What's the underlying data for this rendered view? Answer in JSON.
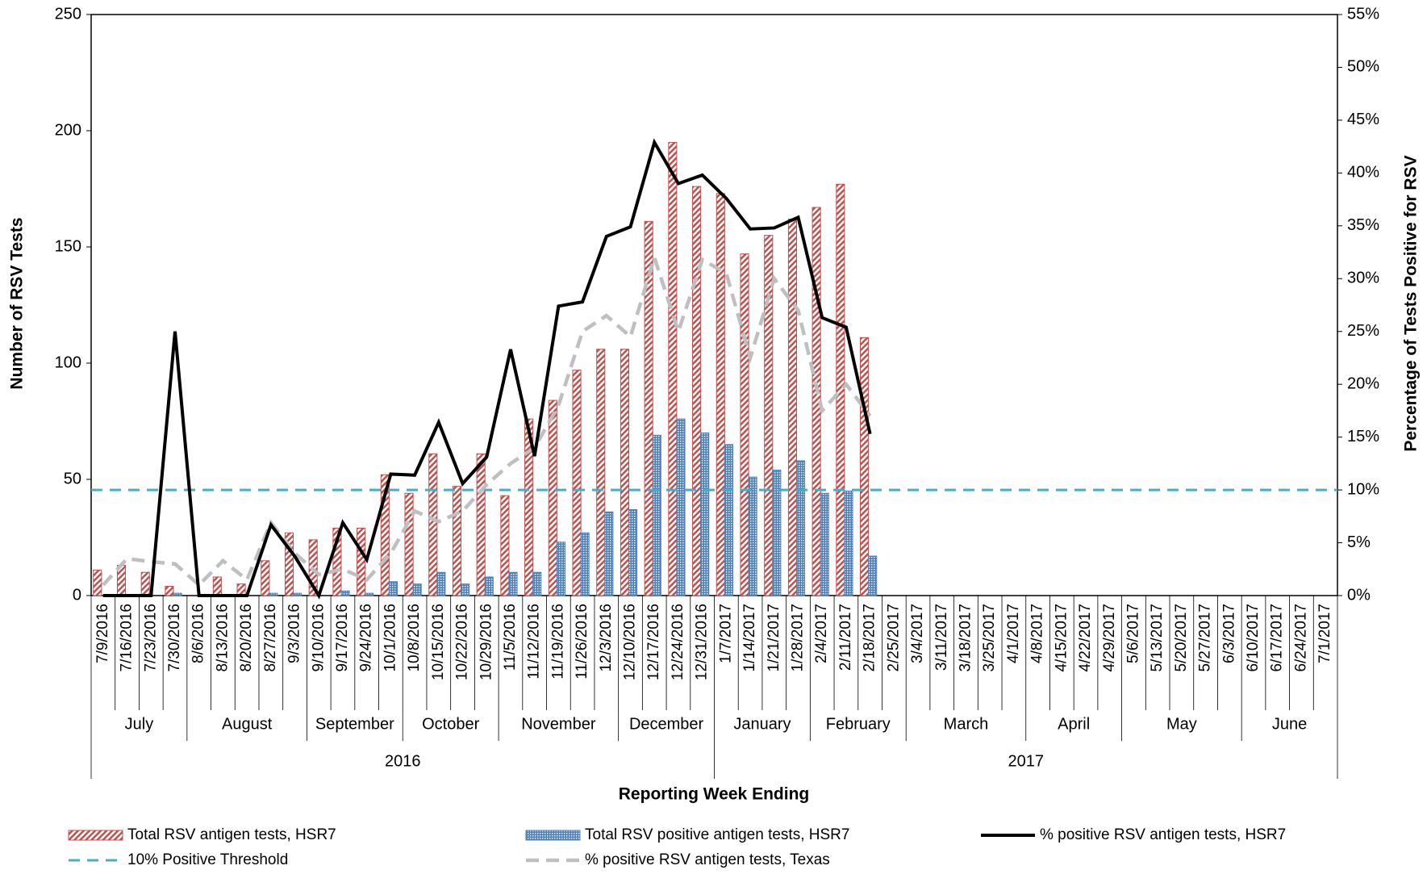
{
  "chart_data": {
    "type": "bar-line",
    "x_title": "Reporting Week Ending",
    "y_title": "Number of RSV Tests",
    "y2_title": "Percentage of Tests Positive for RSV",
    "categories": [
      "7/9/2016",
      "7/16/2016",
      "7/23/2016",
      "7/30/2016",
      "8/6/2016",
      "8/13/2016",
      "8/20/2016",
      "8/27/2016",
      "9/3/2016",
      "9/10/2016",
      "9/17/2016",
      "9/24/2016",
      "10/1/2016",
      "10/8/2016",
      "10/15/2016",
      "10/22/2016",
      "10/29/2016",
      "11/5/2016",
      "11/12/2016",
      "11/19/2016",
      "11/26/2016",
      "12/3/2016",
      "12/10/2016",
      "12/17/2016",
      "12/24/2016",
      "12/31/2016",
      "1/7/2017",
      "1/14/2017",
      "1/21/2017",
      "1/28/2017",
      "2/4/2017",
      "2/11/2017",
      "2/18/2017",
      "2/25/2017",
      "3/4/2017",
      "3/11/2017",
      "3/18/2017",
      "3/25/2017",
      "4/1/2017",
      "4/8/2017",
      "4/15/2017",
      "4/22/2017",
      "4/29/2017",
      "5/6/2017",
      "5/13/2017",
      "5/20/2017",
      "5/27/2017",
      "6/3/2017",
      "6/10/2017",
      "6/17/2017",
      "6/24/2017",
      "7/1/2017"
    ],
    "months": [
      {
        "label": "July",
        "span": 4
      },
      {
        "label": "August",
        "span": 5
      },
      {
        "label": "September",
        "span": 4
      },
      {
        "label": "October",
        "span": 4
      },
      {
        "label": "November",
        "span": 5
      },
      {
        "label": "December",
        "span": 4
      },
      {
        "label": "January",
        "span": 4
      },
      {
        "label": "February",
        "span": 4
      },
      {
        "label": "March",
        "span": 5
      },
      {
        "label": "April",
        "span": 4
      },
      {
        "label": "May",
        "span": 5
      },
      {
        "label": "June",
        "span": 4
      }
    ],
    "years": [
      {
        "label": "2016",
        "span": 26
      },
      {
        "label": "2017",
        "span": 26
      }
    ],
    "series": [
      {
        "name": "Total RSV antigen tests, HSR7",
        "kind": "bar",
        "color": "#c0504d",
        "values": [
          11,
          13,
          10,
          4,
          0,
          8,
          5,
          15,
          27,
          24,
          29,
          29,
          52,
          44,
          61,
          47,
          61,
          43,
          76,
          84,
          97,
          106,
          106,
          161,
          195,
          176,
          173,
          147,
          155,
          162,
          167,
          177,
          111,
          null,
          null,
          null,
          null,
          null,
          null,
          null,
          null,
          null,
          null,
          null,
          null,
          null,
          null,
          null,
          null,
          null,
          null,
          null
        ]
      },
      {
        "name": "Total RSV positive antigen tests, HSR7",
        "kind": "bar",
        "color": "#4f81bd",
        "values": [
          0,
          0,
          0,
          1,
          0,
          0,
          0,
          1,
          1,
          0,
          2,
          1,
          6,
          5,
          10,
          5,
          8,
          10,
          10,
          23,
          27,
          36,
          37,
          69,
          76,
          70,
          65,
          51,
          54,
          58,
          44,
          45,
          17,
          null,
          null,
          null,
          null,
          null,
          null,
          null,
          null,
          null,
          null,
          null,
          null,
          null,
          null,
          null,
          null,
          null,
          null,
          null
        ]
      },
      {
        "name": "% positive RSV antigen tests, HSR7",
        "kind": "line",
        "axis": "y2",
        "color": "#000000",
        "values": [
          0,
          0,
          0,
          25,
          0,
          0,
          0,
          6.7,
          3.7,
          0,
          6.9,
          3.4,
          11.5,
          11.4,
          16.4,
          10.6,
          13.1,
          23.3,
          13.2,
          27.4,
          27.8,
          34,
          34.9,
          42.9,
          39,
          39.8,
          37.6,
          34.7,
          34.8,
          35.8,
          26.3,
          25.4,
          15.3,
          null,
          null,
          null,
          null,
          null,
          null,
          null,
          null,
          null,
          null,
          null,
          null,
          null,
          null,
          null,
          null,
          null,
          null,
          null
        ]
      },
      {
        "name": "% positive RSV antigen tests, Texas",
        "kind": "dashed-line",
        "axis": "y2",
        "color": "#bfbfbf",
        "values": [
          1,
          3.5,
          3.2,
          3,
          1,
          3.3,
          1.5,
          6.9,
          4,
          2,
          2.5,
          1.5,
          4,
          8,
          7,
          8,
          10.5,
          12.5,
          14,
          18,
          25,
          26.5,
          24.5,
          32,
          25,
          31.8,
          30.5,
          22.5,
          30,
          27,
          17.5,
          20,
          17,
          null,
          null,
          null,
          null,
          null,
          null,
          null,
          null,
          null,
          null,
          null,
          null,
          null,
          null,
          null,
          null,
          null,
          null,
          null
        ]
      }
    ],
    "threshold": {
      "name": "10% Positive Threshold",
      "value": 10,
      "axis": "y2",
      "color": "#4bacc6"
    },
    "ylim": [
      0,
      250
    ],
    "yticks": [
      0,
      50,
      100,
      150,
      200,
      250
    ],
    "y2lim": [
      0,
      55
    ],
    "y2ticks": [
      {
        "value": 0,
        "label": "0%"
      },
      {
        "value": 5,
        "label": "5%"
      },
      {
        "value": 10,
        "label": "10%"
      },
      {
        "value": 15,
        "label": "15%"
      },
      {
        "value": 20,
        "label": "20%"
      },
      {
        "value": 25,
        "label": "25%"
      },
      {
        "value": 30,
        "label": "30%"
      },
      {
        "value": 35,
        "label": "35%"
      },
      {
        "value": 40,
        "label": "40%"
      },
      {
        "value": 45,
        "label": "45%"
      },
      {
        "value": 50,
        "label": "50%"
      },
      {
        "value": 55,
        "label": "55%"
      }
    ]
  }
}
